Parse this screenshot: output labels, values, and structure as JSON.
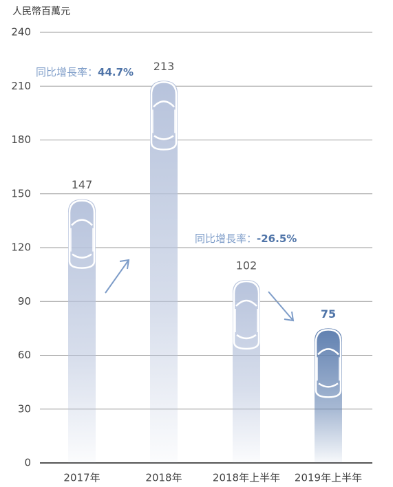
{
  "chart_data": {
    "type": "bar",
    "y_unit_label": "人民幣百萬元",
    "categories": [
      "2017年",
      "2018年",
      "2018年上半年",
      "2019年上半年"
    ],
    "values": [
      147,
      213,
      102,
      75
    ],
    "colors": [
      "#b7c3dc",
      "#b7c3dc",
      "#b7c3dc",
      "#6080b0"
    ],
    "ylim": [
      0,
      240
    ],
    "yticks": [
      0,
      30,
      60,
      90,
      120,
      150,
      180,
      210,
      240
    ],
    "grid": true,
    "annotations": [
      {
        "text": "同比增長率：",
        "value_text": "44.7%"
      },
      {
        "text": "同比增長率：",
        "value_text": "-26.5%"
      }
    ]
  }
}
